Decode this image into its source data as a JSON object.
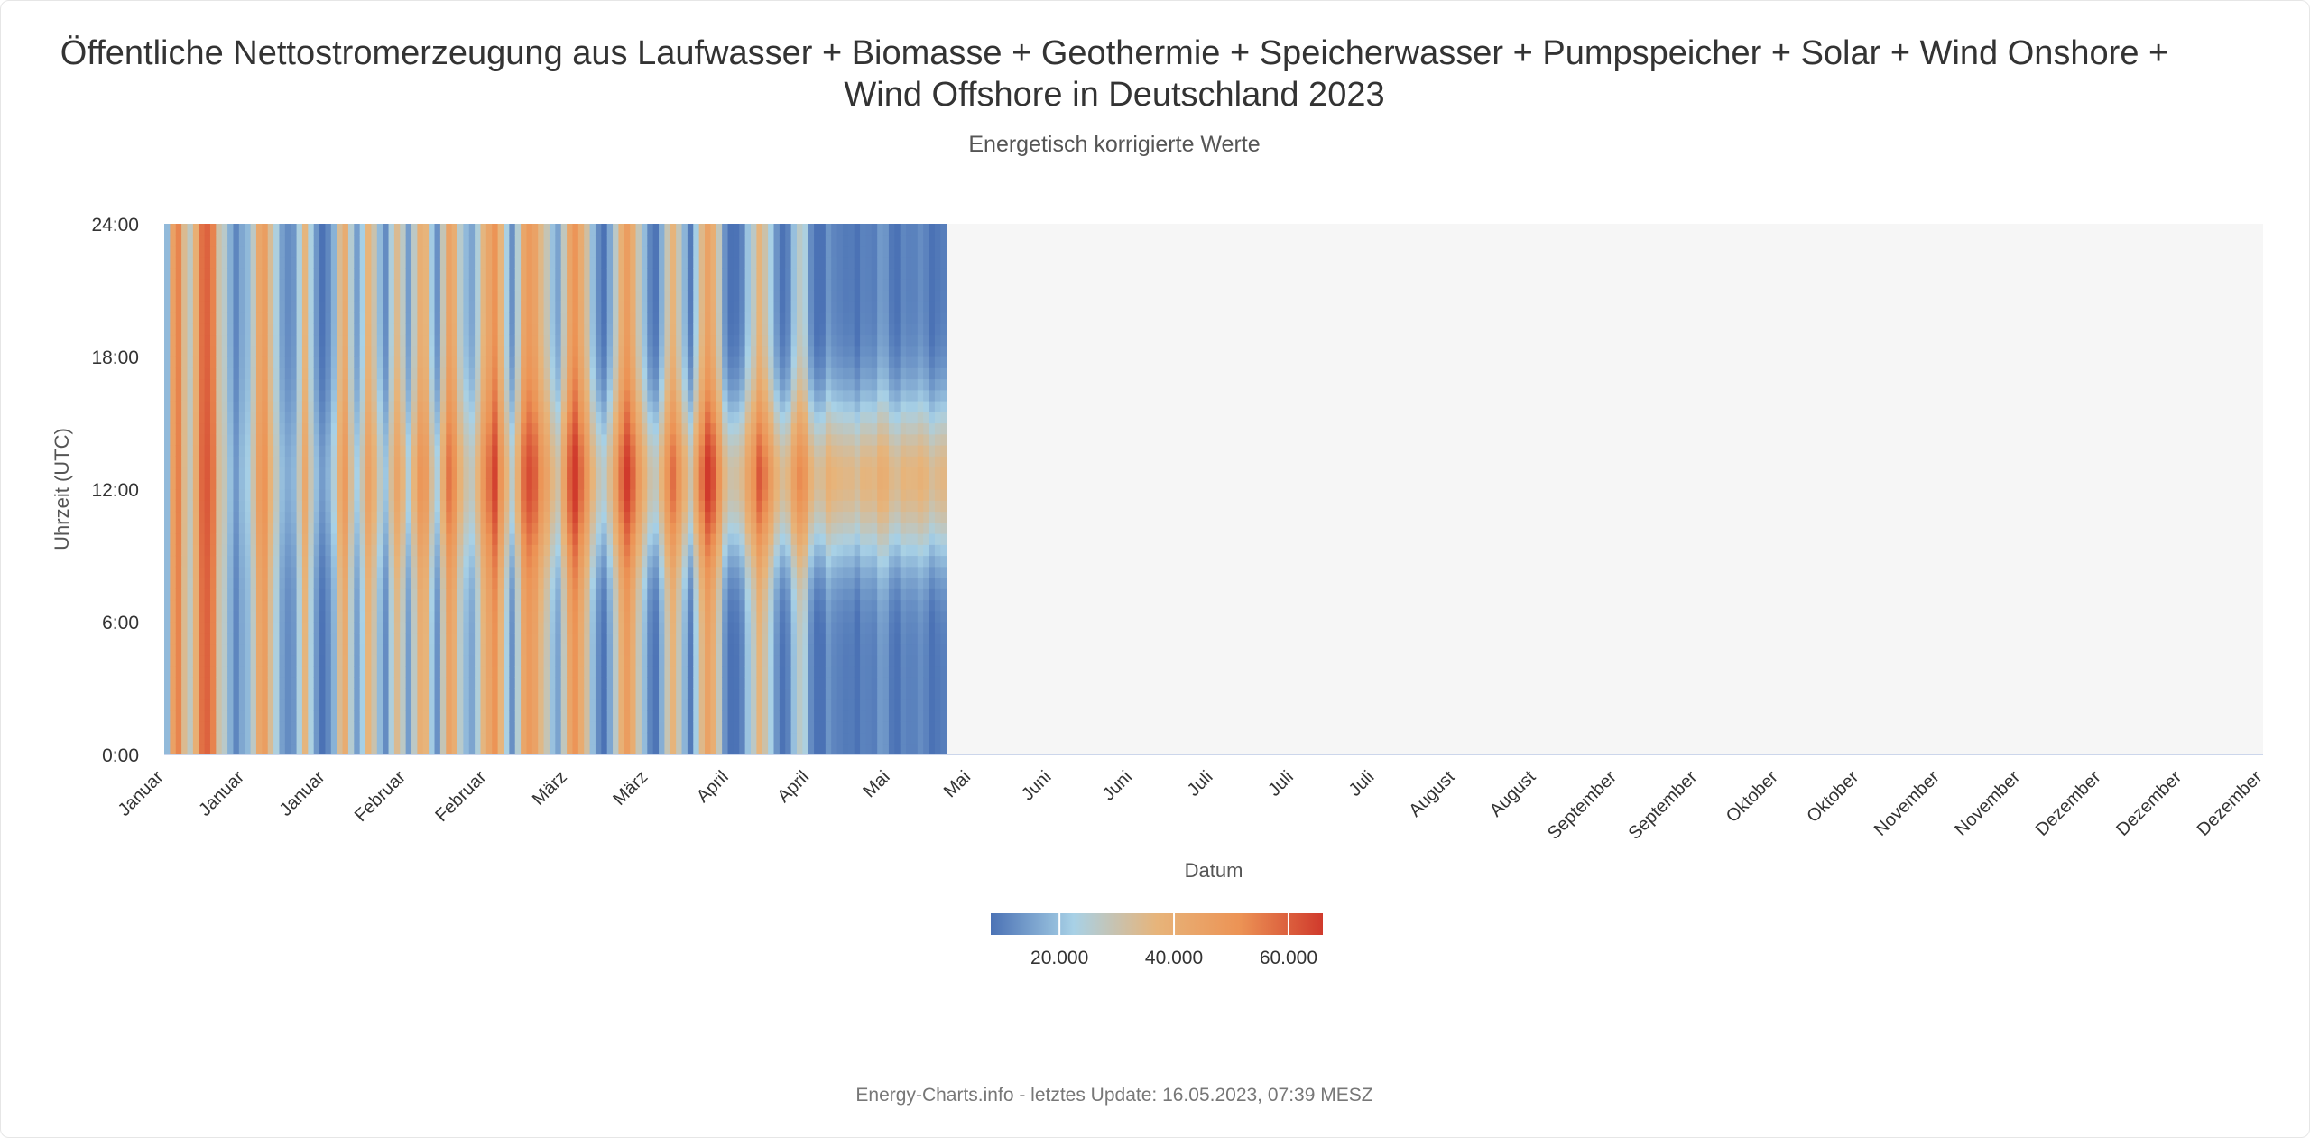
{
  "chart_data": {
    "type": "heatmap",
    "title": "Öffentliche Nettostromerzeugung aus Laufwasser + Biomasse + Geothermie + Speicherwasser + Pumpspeicher + Solar + Wind Onshore + Wind Offshore in Deutschland 2023",
    "subtitle": "Energetisch korrigierte Werte",
    "xlabel": "Datum",
    "ylabel": "Uhrzeit (UTC)",
    "x_range": [
      "2023-01-01",
      "2023-12-31"
    ],
    "data_end": "2023-05-16",
    "y_ticks": [
      "0:00",
      "6:00",
      "12:00",
      "18:00",
      "24:00"
    ],
    "x_ticks": [
      "Januar",
      "Januar",
      "Januar",
      "Februar",
      "Februar",
      "März",
      "März",
      "April",
      "April",
      "Mai",
      "Mai",
      "Juni",
      "Juni",
      "Juli",
      "Juli",
      "Juli",
      "August",
      "August",
      "September",
      "September",
      "Oktober",
      "Oktober",
      "November",
      "November",
      "Dezember",
      "Dezember",
      "Dezember"
    ],
    "color_axis": {
      "ticks": [
        "20.000",
        "40.000",
        "60.000"
      ],
      "tick_values": [
        20000,
        40000,
        60000
      ],
      "min": 8000,
      "max": 66000,
      "stops": [
        "#4b72b5",
        "#a8d1e6",
        "#e7b47a",
        "#ec9355",
        "#d03a2c"
      ]
    },
    "daily_levels": [
      0.22,
      0.62,
      0.82,
      0.45,
      0.35,
      0.55,
      0.85,
      0.92,
      0.82,
      0.4,
      0.3,
      0.15,
      0.08,
      0.12,
      0.18,
      0.35,
      0.6,
      0.7,
      0.45,
      0.3,
      0.12,
      0.08,
      0.1,
      0.3,
      0.55,
      0.3,
      0.12,
      0.05,
      0.1,
      0.2,
      0.45,
      0.6,
      0.35,
      0.15,
      0.3,
      0.55,
      0.4,
      0.2,
      0.1,
      0.3,
      0.5,
      0.35,
      0.15,
      0.4,
      0.6,
      0.55,
      0.3,
      0.12,
      0.45,
      0.75,
      0.65,
      0.4,
      0.22,
      0.18,
      0.35,
      0.55,
      0.72,
      0.88,
      0.6,
      0.35,
      0.15,
      0.4,
      0.7,
      0.85,
      0.78,
      0.6,
      0.45,
      0.3,
      0.2,
      0.45,
      0.75,
      0.88,
      0.72,
      0.55,
      0.3,
      0.12,
      0.08,
      0.2,
      0.45,
      0.7,
      0.82,
      0.7,
      0.5,
      0.3,
      0.15,
      0.08,
      0.25,
      0.5,
      0.65,
      0.45,
      0.25,
      0.12,
      0.35,
      0.6,
      0.8,
      0.7,
      0.45,
      0.2,
      0.1,
      0.08,
      0.15,
      0.3,
      0.5,
      0.7,
      0.55,
      0.35,
      0.2,
      0.08,
      0.12,
      0.3,
      0.5,
      0.4,
      0.2,
      0.1,
      0.08,
      0.2,
      0.15,
      0.1,
      0.12,
      0.08,
      0.08,
      0.12,
      0.1,
      0.15,
      0.25,
      0.18,
      0.12,
      0.1,
      0.12,
      0.15,
      0.14,
      0.15,
      0.12,
      0.1,
      0.1,
      0.1
    ],
    "daily_levels_unit": "normalised 0–1 on color axis",
    "credits": "Energy-Charts.info - letztes Update: 16.05.2023, 07:39 MESZ"
  },
  "colors": {
    "plot_background": "#f6f6f6",
    "axis_line": "#ccd6eb",
    "text": "#333333"
  }
}
